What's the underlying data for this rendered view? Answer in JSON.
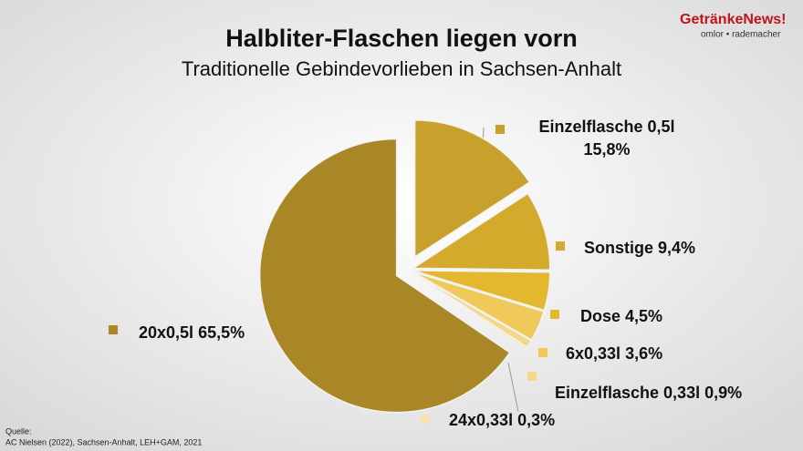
{
  "chart_data": {
    "type": "pie",
    "title": "Halbliter-Flaschen liegen vorn",
    "subtitle": "Traditionelle Gebindevorlieben in Sachsen-Anhalt",
    "categories": [
      "Einzelflasche 0,5l",
      "Sonstige",
      "Dose",
      "6x0,33l",
      "Einzelflasche 0,33l",
      "24x0,33l",
      "20x0,5l"
    ],
    "values": [
      15.8,
      9.4,
      4.5,
      3.6,
      0.9,
      0.3,
      65.5
    ],
    "value_labels": [
      "15,8%",
      "9,4%",
      "4,5%",
      "3,6%",
      "0,9%",
      "0,3%",
      "65,5%"
    ],
    "colors": [
      "#c7a12b",
      "#d4aa2d",
      "#e3b82f",
      "#efc95a",
      "#f4d88a",
      "#f7e3b2",
      "#a98727"
    ]
  },
  "logo": {
    "name": "GetränkeNews",
    "mark": "!",
    "tagline": "omlor • rademacher"
  },
  "source": {
    "heading": "Quelle:",
    "text": "AC Nielsen (2022), Sachsen-Anhalt, LEH+GAM, 2021"
  }
}
